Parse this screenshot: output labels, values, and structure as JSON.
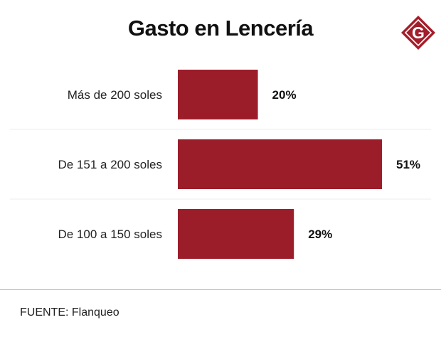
{
  "title": "Gasto en Lencería",
  "logo": {
    "letter": "G",
    "color": "#a31e2b",
    "icon": "g-diamond-logo"
  },
  "source": "FUENTE: Flanqueo",
  "colors": {
    "bar": "#9c1d2a",
    "separator": "#eeeeee"
  },
  "chart_data": {
    "type": "bar",
    "orientation": "horizontal",
    "title": "Gasto en Lencería",
    "categories": [
      "Más de 200 soles",
      "De 151 a 200 soles",
      "De 100 a 150 soles"
    ],
    "values": [
      20,
      51,
      29
    ],
    "value_labels": [
      "20%",
      "51%",
      "29%"
    ],
    "unit": "%",
    "xlim": [
      0,
      51
    ],
    "grid": false,
    "legend": "none"
  }
}
